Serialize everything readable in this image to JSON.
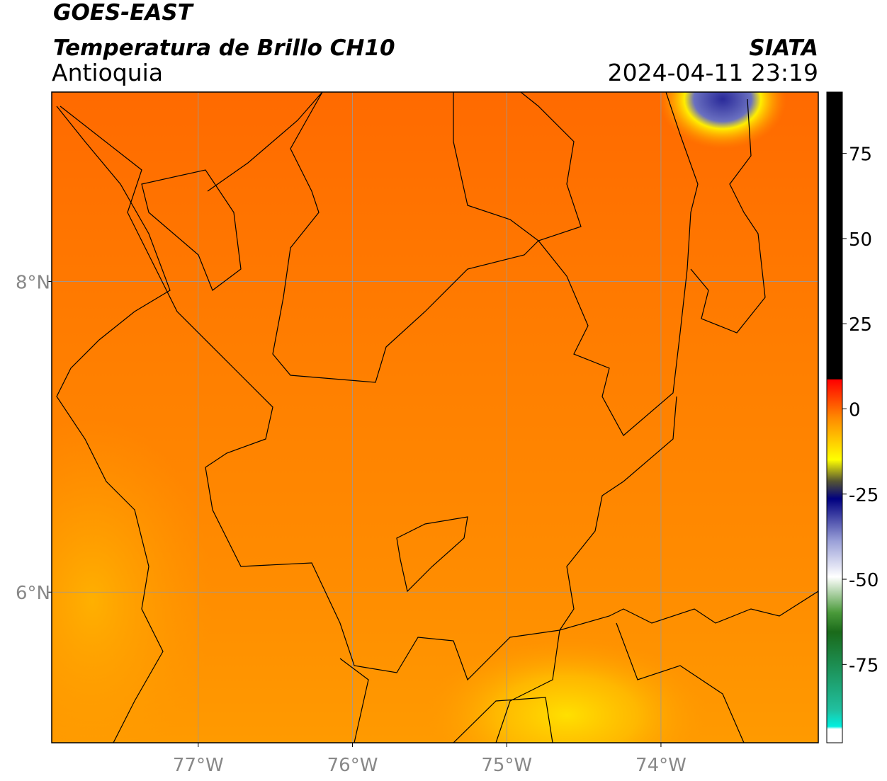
{
  "header": {
    "title": "GOES-EAST",
    "subtitle": "Temperatura de Brillo CH10",
    "region": "Antioquia",
    "source": "SIATA",
    "timestamp": "2024-04-11 23:19"
  },
  "map": {
    "xlim": [
      -77.95,
      -72.98
    ],
    "ylim": [
      5.03,
      9.22
    ],
    "xticks": [
      {
        "value": -77,
        "label": "77°W"
      },
      {
        "value": -76,
        "label": "76°W"
      },
      {
        "value": -75,
        "label": "75°W"
      },
      {
        "value": -74,
        "label": "74°W"
      }
    ],
    "yticks": [
      {
        "value": 8,
        "label": "8°N"
      },
      {
        "value": 6,
        "label": "6°N"
      }
    ]
  },
  "colorbar": {
    "lim": [
      -98,
      93
    ],
    "ticks": [
      75,
      50,
      25,
      0,
      -25,
      -50,
      -75
    ]
  }
}
